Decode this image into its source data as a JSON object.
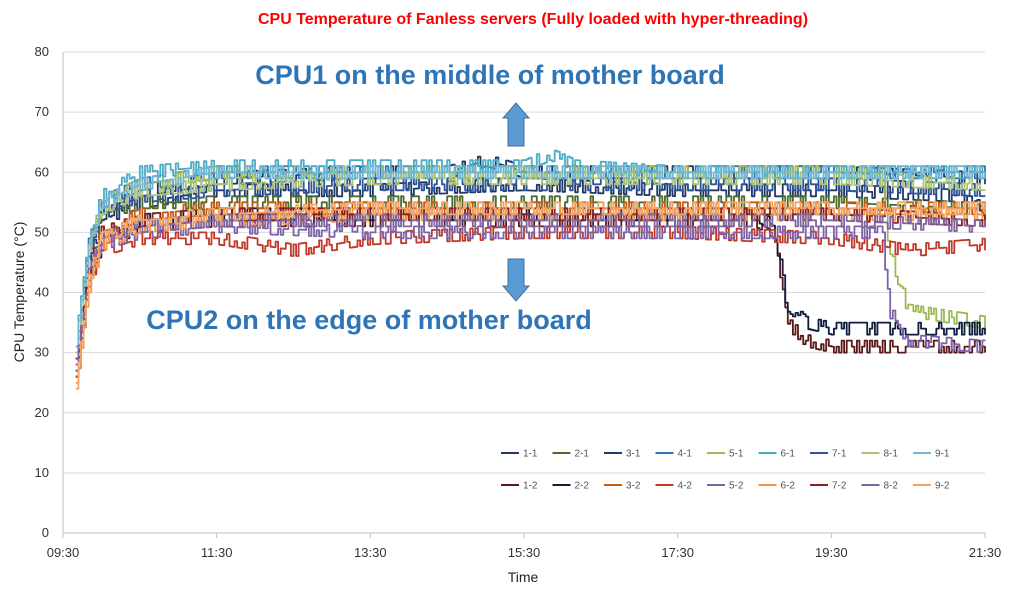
{
  "chart_data": {
    "type": "line",
    "title": "CPU Temperature of Fanless servers (Fully loaded with hyper-threading)",
    "xlabel": "Time",
    "ylabel": "CPU Temperature (°C)",
    "xlim": [
      "09:30",
      "21:30"
    ],
    "ylim": [
      0,
      80
    ],
    "x_ticks": [
      "09:30",
      "11:30",
      "13:30",
      "15:30",
      "17:30",
      "19:30",
      "21:30"
    ],
    "y_ticks": [
      "0",
      "10",
      "20",
      "30",
      "40",
      "50",
      "60",
      "70",
      "80"
    ],
    "grid": "horizontal",
    "legend_position": "bottom-right",
    "annotations": [
      {
        "text": "CPU1 on the middle of mother board",
        "arrow": "up"
      },
      {
        "text": "CPU2 on the edge of mother board",
        "arrow": "down"
      }
    ],
    "series": [
      {
        "name": "1-1",
        "color": "#1f3864",
        "points": [
          [
            "09:40",
            27
          ],
          [
            "09:50",
            45
          ],
          [
            "10:00",
            52
          ],
          [
            "10:30",
            55
          ],
          [
            "11:30",
            57
          ],
          [
            "13:30",
            57
          ],
          [
            "15:30",
            58
          ],
          [
            "17:30",
            57
          ],
          [
            "19:30",
            57
          ],
          [
            "21:20",
            56
          ],
          [
            "21:30",
            52
          ]
        ]
      },
      {
        "name": "2-1",
        "color": "#4e6b2b",
        "points": [
          [
            "09:40",
            28
          ],
          [
            "09:50",
            46
          ],
          [
            "10:00",
            53
          ],
          [
            "10:30",
            55
          ],
          [
            "11:30",
            55
          ],
          [
            "13:30",
            55
          ],
          [
            "15:30",
            55
          ],
          [
            "17:30",
            55
          ],
          [
            "19:30",
            55
          ],
          [
            "21:20",
            54
          ],
          [
            "21:30",
            53
          ]
        ]
      },
      {
        "name": "3-1",
        "color": "#203864",
        "points": [
          [
            "09:40",
            29
          ],
          [
            "09:50",
            47
          ],
          [
            "10:00",
            54
          ],
          [
            "10:30",
            57
          ],
          [
            "11:30",
            59
          ],
          [
            "13:30",
            60
          ],
          [
            "14:30",
            60
          ],
          [
            "15:00",
            62
          ],
          [
            "15:30",
            60
          ],
          [
            "17:30",
            60
          ],
          [
            "19:30",
            60
          ],
          [
            "21:30",
            59
          ]
        ]
      },
      {
        "name": "4-1",
        "color": "#2e75b6",
        "points": [
          [
            "09:40",
            30
          ],
          [
            "09:50",
            48
          ],
          [
            "10:00",
            55
          ],
          [
            "10:30",
            58
          ],
          [
            "11:30",
            60
          ],
          [
            "13:30",
            60
          ],
          [
            "15:30",
            60
          ],
          [
            "17:30",
            60
          ],
          [
            "19:30",
            60
          ],
          [
            "21:30",
            60
          ]
        ]
      },
      {
        "name": "5-1",
        "color": "#9bbb59",
        "points": [
          [
            "09:40",
            31
          ],
          [
            "09:45",
            40
          ],
          [
            "09:50",
            47
          ],
          [
            "10:00",
            55
          ],
          [
            "10:30",
            58
          ],
          [
            "11:30",
            60
          ],
          [
            "13:30",
            60
          ],
          [
            "15:30",
            60
          ],
          [
            "17:30",
            60
          ],
          [
            "19:30",
            60
          ],
          [
            "20:10",
            60
          ],
          [
            "20:15",
            47
          ],
          [
            "20:30",
            37
          ],
          [
            "21:00",
            36
          ],
          [
            "21:30",
            35
          ]
        ]
      },
      {
        "name": "6-1",
        "color": "#4bacc6",
        "points": [
          [
            "09:40",
            32
          ],
          [
            "09:50",
            48
          ],
          [
            "10:00",
            56
          ],
          [
            "10:30",
            60
          ],
          [
            "11:30",
            61
          ],
          [
            "13:30",
            61
          ],
          [
            "15:30",
            61
          ],
          [
            "15:50",
            63
          ],
          [
            "16:10",
            61
          ],
          [
            "17:30",
            60
          ],
          [
            "19:30",
            60
          ],
          [
            "21:30",
            60
          ]
        ]
      },
      {
        "name": "7-1",
        "color": "#2f5597",
        "points": [
          [
            "09:40",
            29
          ],
          [
            "09:50",
            46
          ],
          [
            "10:00",
            54
          ],
          [
            "10:30",
            56
          ],
          [
            "11:30",
            57
          ],
          [
            "13:30",
            58
          ],
          [
            "15:30",
            58
          ],
          [
            "17:30",
            58
          ],
          [
            "19:30",
            58
          ],
          [
            "21:30",
            57
          ]
        ]
      },
      {
        "name": "8-1",
        "color": "#a9c476",
        "points": [
          [
            "09:40",
            30
          ],
          [
            "09:50",
            47
          ],
          [
            "10:00",
            54
          ],
          [
            "10:30",
            57
          ],
          [
            "11:30",
            58
          ],
          [
            "13:30",
            59
          ],
          [
            "15:30",
            59
          ],
          [
            "17:30",
            59
          ],
          [
            "19:30",
            59
          ],
          [
            "21:30",
            58
          ]
        ]
      },
      {
        "name": "9-1",
        "color": "#6fb7d6",
        "points": [
          [
            "09:40",
            31
          ],
          [
            "09:50",
            48
          ],
          [
            "10:00",
            55
          ],
          [
            "10:30",
            58
          ],
          [
            "11:30",
            60
          ],
          [
            "13:30",
            60
          ],
          [
            "15:30",
            60
          ],
          [
            "17:30",
            60
          ],
          [
            "19:30",
            60
          ],
          [
            "21:30",
            60
          ]
        ]
      },
      {
        "name": "1-2",
        "color": "#5b1a1a",
        "points": [
          [
            "09:40",
            26
          ],
          [
            "09:50",
            42
          ],
          [
            "10:00",
            48
          ],
          [
            "10:30",
            51
          ],
          [
            "11:30",
            52
          ],
          [
            "13:30",
            52
          ],
          [
            "15:30",
            52
          ],
          [
            "17:30",
            52
          ],
          [
            "18:30",
            52
          ],
          [
            "18:45",
            50
          ],
          [
            "18:55",
            35
          ],
          [
            "19:10",
            32
          ],
          [
            "19:30",
            31
          ],
          [
            "21:30",
            31
          ]
        ]
      },
      {
        "name": "2-2",
        "color": "#0e1e3c",
        "points": [
          [
            "09:40",
            27
          ],
          [
            "09:50",
            43
          ],
          [
            "10:00",
            49
          ],
          [
            "10:30",
            52
          ],
          [
            "11:30",
            53
          ],
          [
            "13:30",
            53
          ],
          [
            "15:30",
            53
          ],
          [
            "17:30",
            53
          ],
          [
            "18:30",
            53
          ],
          [
            "18:45",
            51
          ],
          [
            "18:55",
            38
          ],
          [
            "19:10",
            35
          ],
          [
            "19:30",
            34
          ],
          [
            "21:30",
            34
          ]
        ]
      },
      {
        "name": "3-2",
        "color": "#c55a11",
        "points": [
          [
            "09:40",
            27
          ],
          [
            "09:50",
            44
          ],
          [
            "10:00",
            50
          ],
          [
            "10:30",
            53
          ],
          [
            "11:30",
            54
          ],
          [
            "13:30",
            54
          ],
          [
            "15:30",
            54
          ],
          [
            "17:30",
            54
          ],
          [
            "19:30",
            54
          ],
          [
            "21:30",
            54
          ]
        ]
      },
      {
        "name": "4-2",
        "color": "#c0392b",
        "points": [
          [
            "09:40",
            25
          ],
          [
            "09:50",
            42
          ],
          [
            "10:00",
            47
          ],
          [
            "10:30",
            49
          ],
          [
            "11:30",
            49
          ],
          [
            "12:30",
            47
          ],
          [
            "13:30",
            49
          ],
          [
            "15:30",
            50
          ],
          [
            "17:30",
            50
          ],
          [
            "19:30",
            49
          ],
          [
            "20:30",
            47
          ],
          [
            "21:30",
            48
          ]
        ]
      },
      {
        "name": "5-2",
        "color": "#7f63a8",
        "points": [
          [
            "09:40",
            26
          ],
          [
            "09:50",
            43
          ],
          [
            "10:00",
            48
          ],
          [
            "10:30",
            50
          ],
          [
            "11:30",
            51
          ],
          [
            "13:30",
            50
          ],
          [
            "15:30",
            50
          ],
          [
            "17:30",
            50
          ],
          [
            "19:30",
            50
          ],
          [
            "20:10",
            50
          ],
          [
            "20:15",
            37
          ],
          [
            "20:30",
            32
          ],
          [
            "21:30",
            31
          ]
        ]
      },
      {
        "name": "6-2",
        "color": "#f79646",
        "points": [
          [
            "09:40",
            24
          ],
          [
            "09:50",
            41
          ],
          [
            "10:00",
            48
          ],
          [
            "10:30",
            51
          ],
          [
            "11:30",
            52
          ],
          [
            "13:30",
            53
          ],
          [
            "15:30",
            53
          ],
          [
            "17:30",
            53
          ],
          [
            "19:30",
            53
          ],
          [
            "21:30",
            53
          ]
        ]
      },
      {
        "name": "7-2",
        "color": "#8b2020",
        "points": [
          [
            "09:40",
            28
          ],
          [
            "09:50",
            44
          ],
          [
            "10:00",
            50
          ],
          [
            "10:30",
            52
          ],
          [
            "11:30",
            53
          ],
          [
            "13:30",
            53
          ],
          [
            "15:30",
            53
          ],
          [
            "17:30",
            53
          ],
          [
            "19:30",
            53
          ],
          [
            "21:30",
            52
          ]
        ]
      },
      {
        "name": "8-2",
        "color": "#8064a2",
        "points": [
          [
            "09:40",
            27
          ],
          [
            "09:50",
            43
          ],
          [
            "10:00",
            49
          ],
          [
            "10:30",
            51
          ],
          [
            "11:30",
            52
          ],
          [
            "13:30",
            52
          ],
          [
            "15:30",
            52
          ],
          [
            "17:30",
            52
          ],
          [
            "19:30",
            52
          ],
          [
            "21:30",
            51
          ]
        ]
      },
      {
        "name": "9-2",
        "color": "#f4a460",
        "points": [
          [
            "09:40",
            25
          ],
          [
            "09:50",
            42
          ],
          [
            "10:00",
            49
          ],
          [
            "10:30",
            52
          ],
          [
            "11:30",
            53
          ],
          [
            "13:30",
            54
          ],
          [
            "15:30",
            54
          ],
          [
            "17:30",
            54
          ],
          [
            "19:30",
            54
          ],
          [
            "21:30",
            54
          ]
        ]
      }
    ]
  }
}
